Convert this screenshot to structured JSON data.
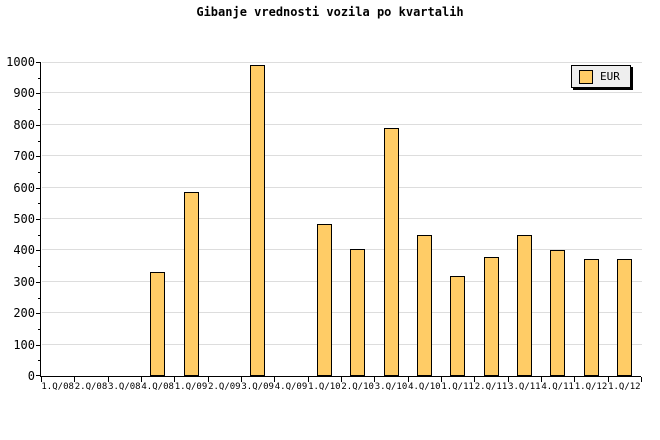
{
  "chart_data": {
    "type": "bar",
    "title": "Gibanje vrednosti vozila po kvartalih",
    "categories": [
      "1.Q/08",
      "2.Q/08",
      "3.Q/08",
      "4.Q/08",
      "1.Q/09",
      "2.Q/09",
      "3.Q/09",
      "4.Q/09",
      "1.Q/10",
      "2.Q/10",
      "3.Q/10",
      "4.Q/10",
      "1.Q/11",
      "2.Q/11",
      "3.Q/11",
      "4.Q/11",
      "1.Q/12",
      "1.Q/12"
    ],
    "series": [
      {
        "name": "EUR",
        "values": [
          null,
          null,
          null,
          330,
          585,
          null,
          990,
          null,
          485,
          405,
          790,
          450,
          320,
          380,
          450,
          400,
          372,
          372
        ]
      }
    ],
    "xlabel": "",
    "ylabel": "",
    "ylim": [
      0,
      1000
    ],
    "y_tick_step": 100,
    "y_minor_tick_step": 50,
    "grid": "horizontal-major",
    "legend_position": "top-right"
  },
  "legend": {
    "label": "EUR"
  },
  "colors": {
    "bar_fill": "#FFCC66",
    "bar_border": "#000000",
    "gridline": "#DDDDDD",
    "axis": "#000000",
    "text": "#000000",
    "legend_bg": "#EEEEEE",
    "legend_shadow": "#000000",
    "background": "#FFFFFF"
  }
}
